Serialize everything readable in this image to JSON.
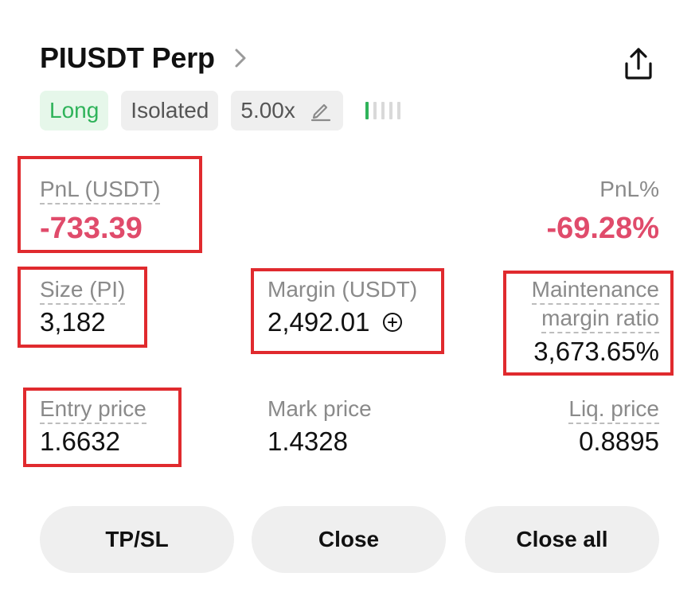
{
  "position": {
    "title": "PIUSDT Perp",
    "side": "Long",
    "margin_mode": "Isolated",
    "leverage": "5.00x",
    "risk_level": 0.2
  },
  "stats": {
    "pnl_label": "PnL (USDT)",
    "pnl_value": "-733.39",
    "pnl_pct_label": "PnL%",
    "pnl_pct_value": "-69.28%",
    "size_label": "Size (PI)",
    "size_value": "3,182",
    "margin_label": "Margin (USDT)",
    "margin_value": "2,492.01",
    "mmr_label_line1": "Maintenance",
    "mmr_label_line2": "margin ratio",
    "mmr_value": "3,673.65%",
    "entry_label": "Entry price",
    "entry_value": "1.6632",
    "mark_label": "Mark price",
    "mark_value": "1.4328",
    "liq_label": "Liq. price",
    "liq_value": "0.8895"
  },
  "actions": {
    "tpsl": "TP/SL",
    "close": "Close",
    "close_all": "Close all"
  },
  "colors": {
    "long_green": "#2fb35a",
    "loss_red": "#e04b6b",
    "highlight_red": "#e02a2e"
  },
  "icons": {
    "title_chevron": "chevron-right-icon",
    "share": "share-icon",
    "leverage_edit": "edit-icon",
    "add_margin": "plus-circle-icon"
  }
}
